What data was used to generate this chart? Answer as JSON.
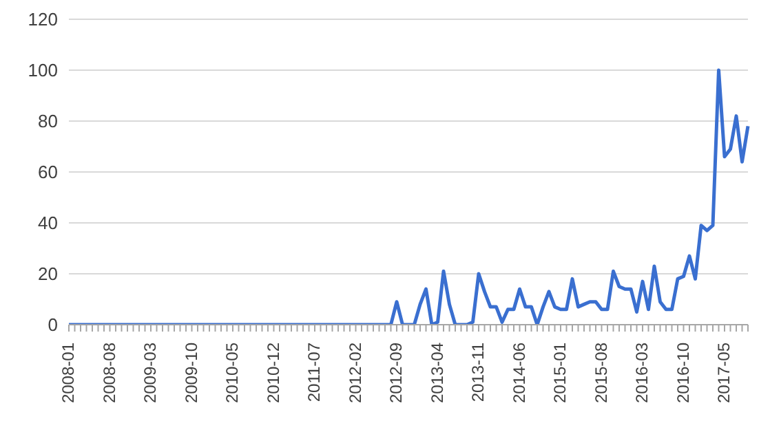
{
  "chart_data": {
    "type": "line",
    "categories": [
      "2008-01",
      null,
      null,
      null,
      null,
      null,
      null,
      "2008-08",
      null,
      null,
      null,
      null,
      null,
      null,
      "2009-03",
      null,
      null,
      null,
      null,
      null,
      null,
      "2009-10",
      null,
      null,
      null,
      null,
      null,
      null,
      "2010-05",
      null,
      null,
      null,
      null,
      null,
      null,
      "2010-12",
      null,
      null,
      null,
      null,
      null,
      null,
      "2011-07",
      null,
      null,
      null,
      null,
      null,
      null,
      "2012-02",
      null,
      null,
      null,
      null,
      null,
      null,
      "2012-09",
      null,
      null,
      null,
      null,
      null,
      null,
      "2013-04",
      null,
      null,
      null,
      null,
      null,
      null,
      "2013-11",
      null,
      null,
      null,
      null,
      null,
      null,
      "2014-06",
      null,
      null,
      null,
      null,
      null,
      null,
      "2015-01",
      null,
      null,
      null,
      null,
      null,
      null,
      "2015-08",
      null,
      null,
      null,
      null,
      null,
      null,
      "2016-03",
      null,
      null,
      null,
      null,
      null,
      null,
      "2016-10",
      null,
      null,
      null,
      null,
      null,
      null,
      "2017-05",
      null,
      null,
      null,
      null
    ],
    "series": [
      {
        "color": "#3a6fd0",
        "values": [
          0,
          0,
          0,
          0,
          0,
          0,
          0,
          0,
          0,
          0,
          0,
          0,
          0,
          0,
          0,
          0,
          0,
          0,
          0,
          0,
          0,
          0,
          0,
          0,
          0,
          0,
          0,
          0,
          0,
          0,
          0,
          0,
          0,
          0,
          0,
          0,
          0,
          0,
          0,
          0,
          0,
          0,
          0,
          0,
          0,
          0,
          0,
          0,
          0,
          0,
          0,
          0,
          0,
          0,
          0,
          0,
          9,
          0,
          0,
          0,
          8,
          14,
          0,
          1,
          21,
          8,
          0,
          0,
          0,
          1,
          20,
          13,
          7,
          7,
          1,
          6,
          6,
          14,
          7,
          7,
          0,
          7,
          13,
          7,
          6,
          6,
          18,
          7,
          8,
          9,
          9,
          6,
          6,
          21,
          15,
          14,
          14,
          5,
          17,
          6,
          23,
          9,
          6,
          6,
          18,
          19,
          27,
          18,
          39,
          37,
          39,
          100,
          66,
          69,
          82,
          64,
          78
        ]
      }
    ],
    "ylim": [
      0,
      120
    ],
    "yticks": [
      0,
      20,
      40,
      60,
      80,
      100,
      120
    ],
    "grid": "y",
    "legend": false,
    "marker": "none",
    "line_style": "solid"
  }
}
